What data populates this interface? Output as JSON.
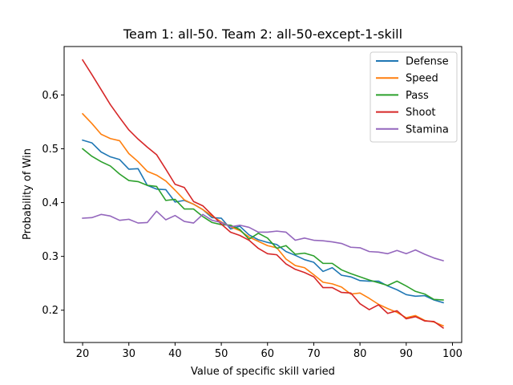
{
  "chart_data": {
    "type": "line",
    "title": "Team 1: all-50.  Team 2: all-50-except-1-skill",
    "xlabel": "Value of specific skill varied",
    "ylabel": "Probability of Win",
    "xlim": [
      16,
      102
    ],
    "ylim": [
      0.14,
      0.69
    ],
    "xticks": [
      20,
      30,
      40,
      50,
      60,
      70,
      80,
      90,
      100
    ],
    "yticks": [
      0.2,
      0.3,
      0.4,
      0.5,
      0.6
    ],
    "ytick_labels": [
      "0.2",
      "0.3",
      "0.4",
      "0.5",
      "0.6"
    ],
    "grid": false,
    "legend_position": "top-right",
    "x": [
      20,
      22,
      24,
      26,
      28,
      30,
      32,
      34,
      36,
      38,
      40,
      42,
      44,
      46,
      48,
      50,
      52,
      54,
      56,
      58,
      60,
      62,
      64,
      66,
      68,
      70,
      72,
      74,
      76,
      78,
      80,
      82,
      84,
      86,
      88,
      90,
      92,
      94,
      96,
      98
    ],
    "series": [
      {
        "name": "Defense",
        "color": "#1f77b4",
        "values": [
          0.516,
          0.511,
          0.494,
          0.485,
          0.48,
          0.462,
          0.463,
          0.432,
          0.425,
          0.424,
          0.401,
          0.404,
          0.397,
          0.387,
          0.372,
          0.371,
          0.351,
          0.356,
          0.34,
          0.331,
          0.326,
          0.322,
          0.309,
          0.302,
          0.294,
          0.289,
          0.272,
          0.279,
          0.265,
          0.262,
          0.255,
          0.254,
          0.254,
          0.245,
          0.238,
          0.229,
          0.226,
          0.227,
          0.219,
          0.214
        ]
      },
      {
        "name": "Speed",
        "color": "#ff7f0e",
        "values": [
          0.565,
          0.547,
          0.527,
          0.519,
          0.515,
          0.491,
          0.476,
          0.458,
          0.451,
          0.44,
          0.423,
          0.405,
          0.397,
          0.387,
          0.375,
          0.364,
          0.355,
          0.348,
          0.336,
          0.328,
          0.32,
          0.316,
          0.295,
          0.283,
          0.279,
          0.266,
          0.252,
          0.249,
          0.243,
          0.23,
          0.232,
          0.222,
          0.211,
          0.203,
          0.196,
          0.186,
          0.19,
          0.181,
          0.178,
          0.171
        ]
      },
      {
        "name": "Pass",
        "color": "#2ca02c",
        "values": [
          0.5,
          0.486,
          0.476,
          0.468,
          0.453,
          0.441,
          0.439,
          0.432,
          0.43,
          0.404,
          0.406,
          0.388,
          0.388,
          0.374,
          0.363,
          0.359,
          0.358,
          0.35,
          0.332,
          0.343,
          0.334,
          0.315,
          0.32,
          0.304,
          0.306,
          0.301,
          0.287,
          0.287,
          0.275,
          0.268,
          0.262,
          0.256,
          0.251,
          0.246,
          0.254,
          0.245,
          0.235,
          0.23,
          0.22,
          0.219
        ]
      },
      {
        "name": "Shoot",
        "color": "#d62728",
        "values": [
          0.665,
          0.638,
          0.61,
          0.582,
          0.558,
          0.535,
          0.518,
          0.503,
          0.489,
          0.462,
          0.434,
          0.428,
          0.402,
          0.394,
          0.377,
          0.36,
          0.345,
          0.339,
          0.33,
          0.315,
          0.305,
          0.303,
          0.286,
          0.276,
          0.27,
          0.262,
          0.242,
          0.242,
          0.233,
          0.232,
          0.212,
          0.201,
          0.21,
          0.194,
          0.199,
          0.184,
          0.188,
          0.18,
          0.179,
          0.167
        ]
      },
      {
        "name": "Stamina",
        "color": "#9467bd",
        "values": [
          0.371,
          0.372,
          0.378,
          0.375,
          0.367,
          0.369,
          0.362,
          0.363,
          0.384,
          0.368,
          0.376,
          0.365,
          0.362,
          0.378,
          0.367,
          0.363,
          0.355,
          0.358,
          0.354,
          0.345,
          0.345,
          0.347,
          0.345,
          0.33,
          0.334,
          0.33,
          0.329,
          0.327,
          0.324,
          0.317,
          0.316,
          0.309,
          0.308,
          0.305,
          0.311,
          0.305,
          0.312,
          0.304,
          0.297,
          0.292
        ]
      }
    ]
  }
}
